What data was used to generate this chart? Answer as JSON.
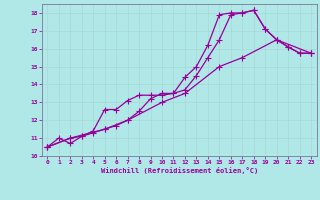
{
  "xlabel": "Windchill (Refroidissement éolien,°C)",
  "bg_color": "#b0e8e8",
  "line_color": "#990099",
  "grid_color": "#c8e8e8",
  "xlim": [
    -0.5,
    23.5
  ],
  "ylim": [
    10,
    18.5
  ],
  "xticks": [
    0,
    1,
    2,
    3,
    4,
    5,
    6,
    7,
    8,
    9,
    10,
    11,
    12,
    13,
    14,
    15,
    16,
    17,
    18,
    19,
    20,
    21,
    22,
    23
  ],
  "yticks": [
    10,
    11,
    12,
    13,
    14,
    15,
    16,
    17,
    18
  ],
  "line1_x": [
    0,
    1,
    2,
    3,
    4,
    5,
    6,
    7,
    8,
    9,
    10,
    11,
    12,
    13,
    14,
    15,
    16,
    17,
    18,
    19,
    20,
    21,
    22,
    23
  ],
  "line1_y": [
    10.5,
    11.0,
    10.7,
    11.1,
    11.4,
    12.6,
    12.6,
    13.1,
    13.4,
    13.4,
    13.4,
    13.5,
    14.4,
    15.0,
    16.2,
    17.9,
    18.0,
    18.0,
    18.15,
    17.1,
    16.5,
    16.1,
    15.75,
    15.75
  ],
  "line2_x": [
    0,
    2,
    3,
    4,
    5,
    6,
    7,
    8,
    9,
    10,
    11,
    12,
    13,
    14,
    15,
    16,
    17,
    18,
    19,
    20,
    21,
    22,
    23
  ],
  "line2_y": [
    10.5,
    11.0,
    11.1,
    11.3,
    11.5,
    11.7,
    12.0,
    12.5,
    13.2,
    13.5,
    13.5,
    13.7,
    14.5,
    15.5,
    16.5,
    17.9,
    18.0,
    18.15,
    17.1,
    16.5,
    16.1,
    15.75,
    15.75
  ],
  "line3_x": [
    0,
    2,
    5,
    7,
    10,
    12,
    15,
    17,
    20,
    23
  ],
  "line3_y": [
    10.5,
    11.0,
    11.5,
    12.0,
    13.0,
    13.5,
    15.0,
    15.5,
    16.5,
    15.75
  ],
  "markersize": 2.5,
  "linewidth": 0.9
}
